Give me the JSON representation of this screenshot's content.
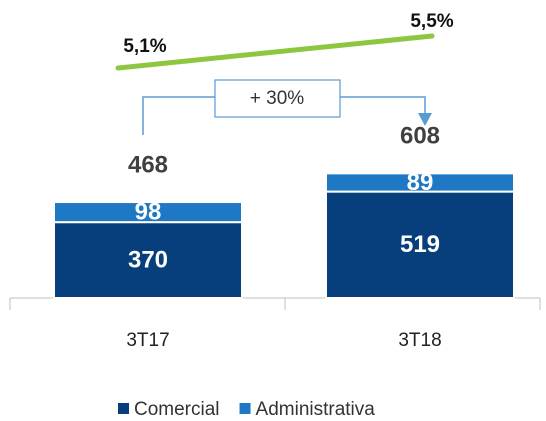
{
  "chart_data": {
    "type": "stacked_bar",
    "categories": [
      "3T17",
      "3T18"
    ],
    "series": [
      {
        "name": "Comercial",
        "color": "#063f7c",
        "values": [
          370,
          519
        ]
      },
      {
        "name": "Administrativa",
        "color": "#1f78c4",
        "values": [
          98,
          89
        ]
      }
    ],
    "totals": [
      468,
      608
    ],
    "line": {
      "values": [
        5.1,
        5.5
      ],
      "value_labels": [
        "5,1%",
        "5,5%"
      ],
      "color": "#8dc63f"
    },
    "annotation": "+ 30%",
    "legend": "bottom"
  }
}
